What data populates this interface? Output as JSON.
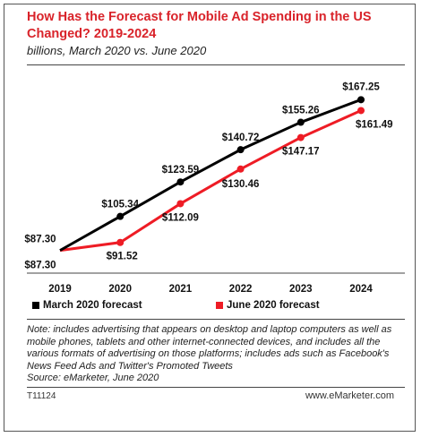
{
  "header": {
    "title": "How Has the Forecast for Mobile Ad Spending in the US Changed? 2019-2024",
    "subtitle": "billions, March 2020 vs. June 2020"
  },
  "chart_data": {
    "type": "line",
    "x": [
      "2019",
      "2020",
      "2021",
      "2022",
      "2023",
      "2024"
    ],
    "series": [
      {
        "name": "March 2020 forecast",
        "color": "#000000",
        "values": [
          87.3,
          105.34,
          123.59,
          140.72,
          155.26,
          167.25
        ],
        "labels": [
          "$87.30",
          "$105.34",
          "$123.59",
          "$140.72",
          "$155.26",
          "$167.25"
        ]
      },
      {
        "name": "June 2020 forecast",
        "color": "#ee1c25",
        "values": [
          87.3,
          91.52,
          112.09,
          130.46,
          147.17,
          161.49
        ],
        "labels": [
          "$87.30",
          "$91.52",
          "$112.09",
          "$130.46",
          "$147.17",
          "$161.49"
        ]
      }
    ],
    "ylim": [
      80,
      175
    ],
    "grid": false,
    "legend_position": "bottom-left"
  },
  "footer": {
    "note": "Note: includes advertising that appears on desktop and laptop computers as well as mobile phones, tablets and other internet-connected devices, and includes all the various formats of advertising on those platforms; includes ads such as Facebook's News Feed Ads and Twitter's Promoted Tweets",
    "source": "Source: eMarketer, June 2020",
    "code": "T11124",
    "brand": "www.eMarketer.com"
  }
}
